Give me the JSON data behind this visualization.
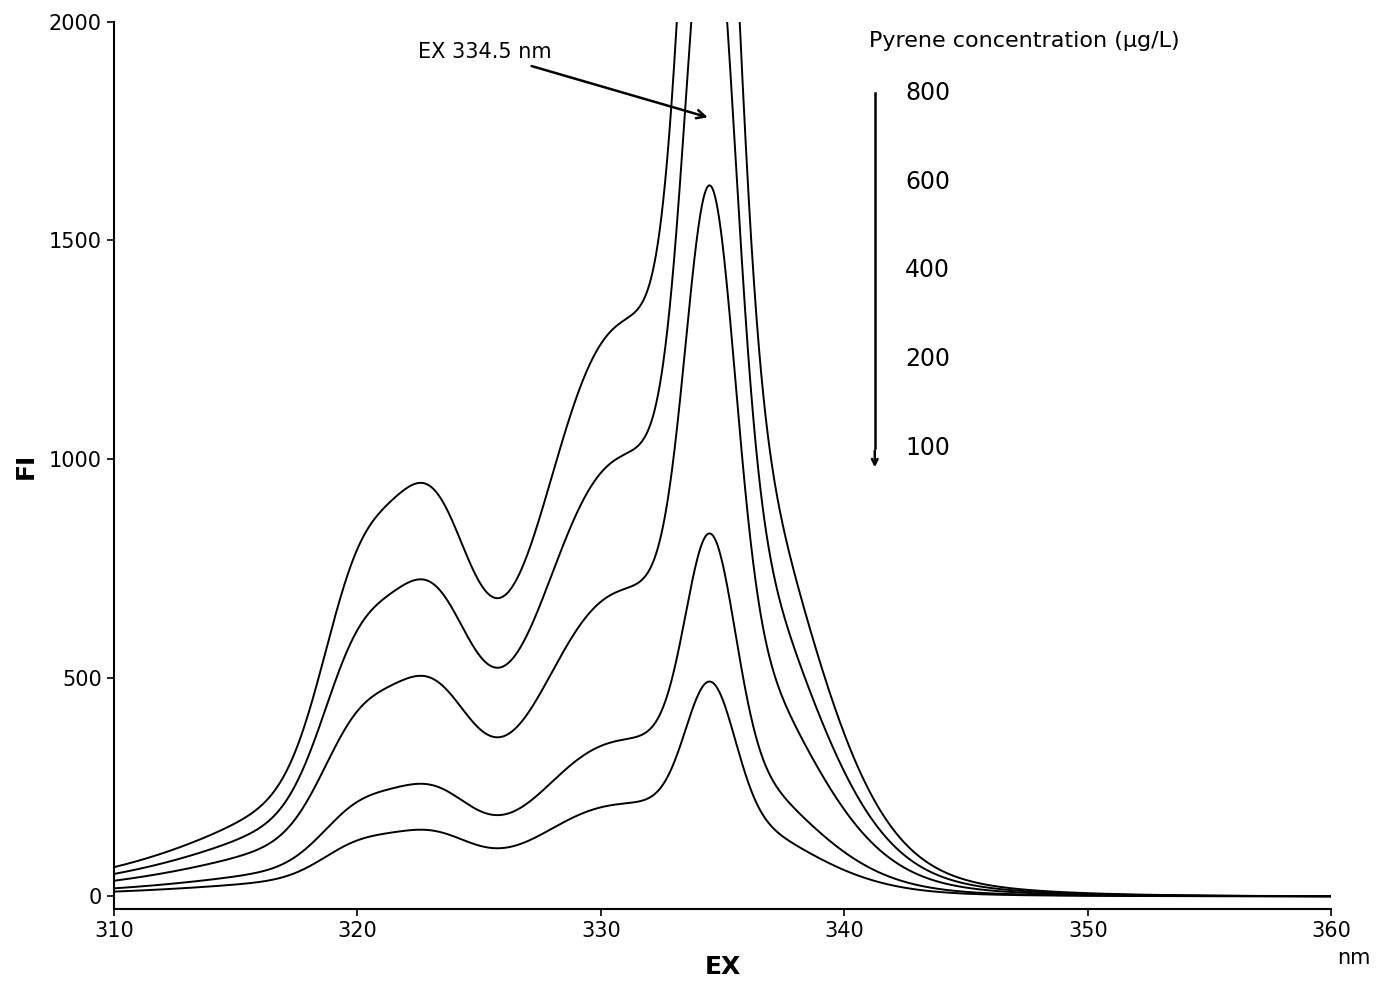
{
  "xlabel": "EX",
  "ylabel": "FI",
  "xlim": [
    310,
    360
  ],
  "ylim": [
    -30,
    2000
  ],
  "xticks": [
    310,
    320,
    330,
    340,
    350,
    360
  ],
  "yticks": [
    0,
    500,
    1000,
    1500,
    2000
  ],
  "concentrations": [
    800,
    600,
    400,
    200,
    100
  ],
  "scale_factors": [
    1800,
    1380,
    960,
    490,
    290
  ],
  "annotation_text": "EX 334.5 nm",
  "legend_title": "Pyrene concentration (µg/L)",
  "line_color": "#000000",
  "background_color": "#ffffff",
  "nm_label": "nm",
  "axis_fontsize": 18,
  "tick_fontsize": 15,
  "annot_fontsize": 15,
  "legend_fontsize": 16,
  "legend_num_fontsize": 17
}
